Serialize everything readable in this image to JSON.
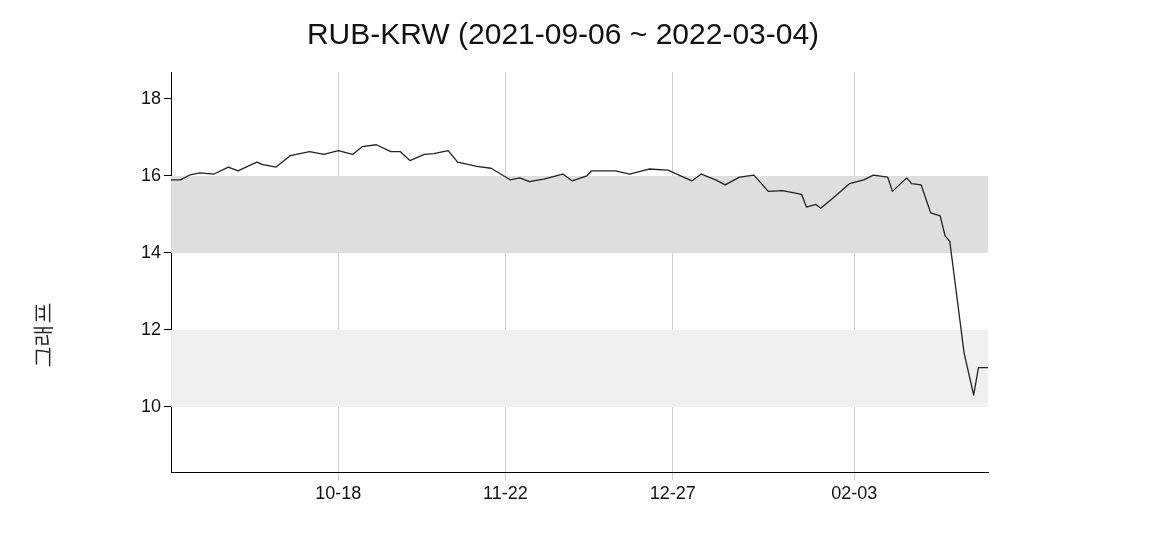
{
  "chart_data": {
    "type": "line",
    "title": "RUB-KRW (2021-09-06 ~ 2022-03-04)",
    "annotations": [
      "그래프"
    ],
    "x": [
      "2021-09-13",
      "2021-09-15",
      "2021-09-17",
      "2021-09-19",
      "2021-09-22",
      "2021-09-25",
      "2021-09-27",
      "2021-10-01",
      "2021-10-02",
      "2021-10-05",
      "2021-10-08",
      "2021-10-12",
      "2021-10-15",
      "2021-10-18",
      "2021-10-21",
      "2021-10-23",
      "2021-10-26",
      "2021-10-29",
      "2021-10-31",
      "2021-11-02",
      "2021-11-05",
      "2021-11-07",
      "2021-11-10",
      "2021-11-12",
      "2021-11-16",
      "2021-11-19",
      "2021-11-23",
      "2021-11-25",
      "2021-11-27",
      "2021-11-30",
      "2021-12-04",
      "2021-12-06",
      "2021-12-09",
      "2021-12-10",
      "2021-12-15",
      "2021-12-18",
      "2021-12-22",
      "2021-12-26",
      "2021-12-31",
      "2022-01-02",
      "2022-01-05",
      "2022-01-07",
      "2022-01-10",
      "2022-01-13",
      "2022-01-16",
      "2022-01-19",
      "2022-01-23",
      "2022-01-24",
      "2022-01-26",
      "2022-01-27",
      "2022-01-30",
      "2022-02-02",
      "2022-02-05",
      "2022-02-07",
      "2022-02-10",
      "2022-02-11",
      "2022-02-14",
      "2022-02-15",
      "2022-02-17",
      "2022-02-19",
      "2022-02-21",
      "2022-02-22",
      "2022-02-23",
      "2022-02-26",
      "2022-02-28",
      "2022-03-01",
      "2022-03-03"
    ],
    "series": [
      {
        "color": "#222222",
        "values": [
          15.9,
          15.9,
          16.03,
          16.08,
          16.05,
          16.23,
          16.13,
          16.36,
          16.3,
          16.23,
          16.53,
          16.63,
          16.56,
          16.66,
          16.56,
          16.76,
          16.81,
          16.63,
          16.63,
          16.4,
          16.56,
          16.58,
          16.66,
          16.36,
          16.25,
          16.2,
          15.9,
          15.95,
          15.85,
          15.92,
          16.05,
          15.87,
          16.0,
          16.13,
          16.13,
          16.05,
          16.18,
          16.15,
          15.87,
          16.05,
          15.9,
          15.77,
          15.97,
          16.02,
          15.6,
          15.62,
          15.52,
          15.19,
          15.26,
          15.16,
          15.47,
          15.8,
          15.9,
          16.02,
          15.97,
          15.6,
          15.95,
          15.8,
          15.77,
          15.04,
          14.96,
          14.45,
          14.3,
          11.4,
          10.31,
          11.02,
          11.02
        ]
      }
    ],
    "xlim": [
      "2021-09-13",
      "2022-03-03"
    ],
    "xticks": [
      {
        "value": "2021-10-18",
        "label": "10-18"
      },
      {
        "value": "2021-11-22",
        "label": "11-22"
      },
      {
        "value": "2021-12-27",
        "label": "12-27"
      },
      {
        "value": "2022-02-03",
        "label": "02-03"
      }
    ],
    "ylim": [
      8.3,
      18.7
    ],
    "yticks": [
      10,
      12,
      14,
      16,
      18
    ],
    "bands": [
      {
        "axis": "y",
        "from": 14,
        "to": 16,
        "color": "#dedede"
      },
      {
        "axis": "y",
        "from": 10,
        "to": 12,
        "color": "#f0f0f0"
      }
    ],
    "grid": "x",
    "legend": false,
    "marker": "none",
    "line_style": "solid"
  }
}
